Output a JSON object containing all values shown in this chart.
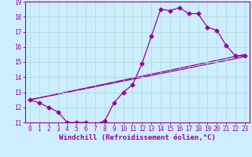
{
  "xlabel": "Windchill (Refroidissement éolien,°C)",
  "bg_color": "#cceeff",
  "line_color": "#990099",
  "grid_color": "#aaddcc",
  "xlim": [
    -0.5,
    23.5
  ],
  "ylim": [
    11,
    19
  ],
  "xticks": [
    0,
    1,
    2,
    3,
    4,
    5,
    6,
    7,
    8,
    9,
    10,
    11,
    12,
    13,
    14,
    15,
    16,
    17,
    18,
    19,
    20,
    21,
    22,
    23
  ],
  "yticks": [
    11,
    12,
    13,
    14,
    15,
    16,
    17,
    18,
    19
  ],
  "curve1_x": [
    0,
    1,
    2,
    3,
    4,
    5,
    6,
    7,
    8,
    9,
    10,
    11,
    12,
    13,
    14,
    15,
    16,
    17,
    18,
    19,
    20,
    21,
    22,
    23
  ],
  "curve1_y": [
    12.5,
    12.3,
    12.0,
    11.7,
    11.0,
    11.0,
    11.0,
    10.9,
    11.1,
    12.3,
    13.0,
    13.5,
    14.9,
    16.7,
    18.5,
    18.4,
    18.6,
    18.2,
    18.2,
    17.3,
    17.1,
    16.1,
    15.4,
    15.4
  ],
  "line1_x": [
    0,
    23
  ],
  "line1_y": [
    12.5,
    15.35
  ],
  "line2_x": [
    0,
    23
  ],
  "line2_y": [
    12.5,
    15.5
  ],
  "marker": "D",
  "markersize": 2.5,
  "linewidth": 0.9,
  "xlabel_fontsize": 6.5,
  "tick_fontsize": 5.5
}
